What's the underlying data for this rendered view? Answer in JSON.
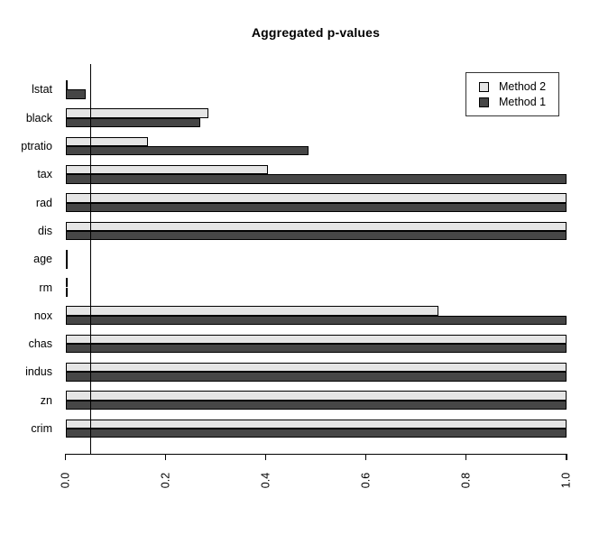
{
  "title": "Aggregated p-values",
  "legend": {
    "items": [
      {
        "label": "Method 2",
        "color": "#E5E5E5"
      },
      {
        "label": "Method 1",
        "color": "#464646"
      }
    ]
  },
  "chart_data": {
    "type": "bar",
    "orientation": "horizontal",
    "title": "Aggregated p-values",
    "categories": [
      "lstat",
      "black",
      "ptratio",
      "tax",
      "rad",
      "dis",
      "age",
      "rm",
      "nox",
      "chas",
      "indus",
      "zn",
      "crim"
    ],
    "series": [
      {
        "name": "Method 2",
        "color": "#E5E5E5",
        "values": [
          0.002,
          0.285,
          0.165,
          0.405,
          1.0,
          1.0,
          0.002,
          0.001,
          0.745,
          1.0,
          1.0,
          1.0,
          1.0
        ]
      },
      {
        "name": "Method 1",
        "color": "#464646",
        "values": [
          0.04,
          0.27,
          0.485,
          1.0,
          1.0,
          1.0,
          0.005,
          0.001,
          1.0,
          1.0,
          1.0,
          1.0,
          1.0
        ]
      }
    ],
    "xlim": [
      0,
      1
    ],
    "x_tick_labels": [
      "0.0",
      "0.2",
      "0.4",
      "0.6",
      "0.8",
      "1.0"
    ],
    "reference_line_x": 0.05,
    "legend_position": "top-right",
    "grid": false,
    "bar_border_color": "#000000"
  }
}
